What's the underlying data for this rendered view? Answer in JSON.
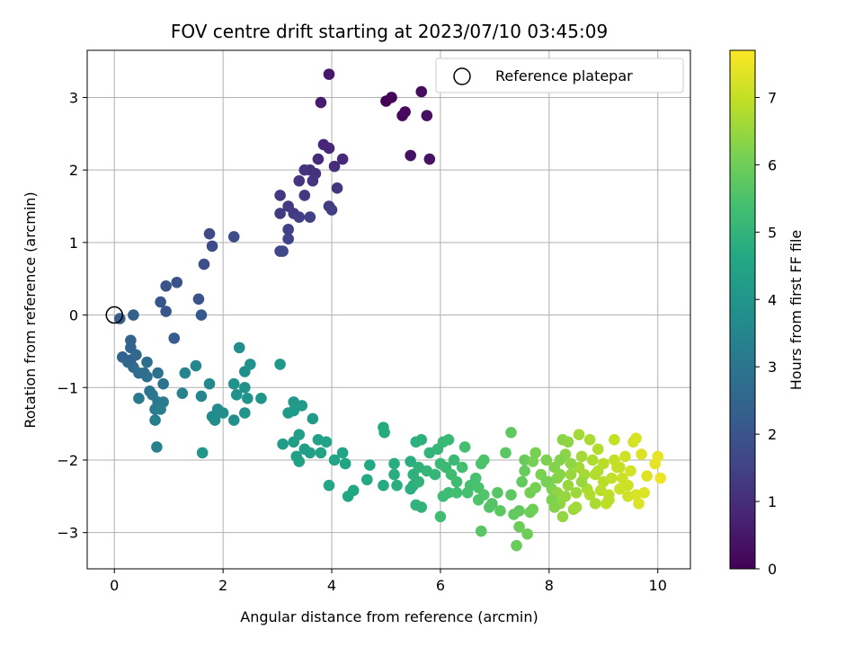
{
  "chart_data": {
    "type": "scatter",
    "title": "FOV centre drift starting at 2023/07/10 03:45:09",
    "xlabel": "Angular distance from reference (arcmin)",
    "ylabel": "Rotation from reference (arcmin)",
    "xlim": [
      -0.5,
      10.6
    ],
    "ylim": [
      -3.5,
      3.65
    ],
    "xticks": [
      "0",
      "2",
      "4",
      "6",
      "8",
      "10"
    ],
    "yticks": [
      "−3",
      "−2",
      "−1",
      "0",
      "1",
      "2",
      "3"
    ],
    "grid": true,
    "legend": {
      "position": "top-right",
      "entries": [
        "Reference platepar"
      ]
    },
    "reference_point": {
      "x": 0.0,
      "y": 0.0
    },
    "colorbar": {
      "label": "Hours from first FF file",
      "colormap": "viridis",
      "range": [
        0,
        7.7
      ],
      "ticks": [
        "0",
        "1",
        "2",
        "3",
        "4",
        "5",
        "6",
        "7"
      ]
    },
    "points": [
      [
        5.0,
        2.95,
        0.05
      ],
      [
        5.1,
        3.0,
        0.1
      ],
      [
        5.3,
        2.75,
        0.15
      ],
      [
        5.35,
        2.8,
        0.2
      ],
      [
        5.65,
        3.08,
        0.25
      ],
      [
        5.75,
        2.75,
        0.3
      ],
      [
        5.45,
        2.2,
        0.35
      ],
      [
        5.8,
        2.15,
        0.4
      ],
      [
        3.95,
        3.32,
        0.5
      ],
      [
        3.8,
        2.93,
        0.6
      ],
      [
        3.85,
        2.35,
        0.8
      ],
      [
        3.95,
        2.3,
        0.85
      ],
      [
        4.2,
        2.15,
        0.9
      ],
      [
        3.75,
        2.15,
        0.95
      ],
      [
        4.05,
        2.05,
        1.0
      ],
      [
        3.6,
        2.0,
        1.05
      ],
      [
        3.7,
        1.95,
        1.1
      ],
      [
        3.5,
        2.0,
        1.12
      ],
      [
        3.4,
        1.85,
        1.15
      ],
      [
        3.65,
        1.85,
        1.18
      ],
      [
        4.1,
        1.75,
        1.2
      ],
      [
        3.05,
        1.65,
        1.25
      ],
      [
        3.5,
        1.65,
        1.28
      ],
      [
        3.2,
        1.5,
        1.3
      ],
      [
        3.3,
        1.4,
        1.32
      ],
      [
        3.05,
        1.4,
        1.35
      ],
      [
        3.95,
        1.5,
        1.38
      ],
      [
        4.0,
        1.45,
        1.4
      ],
      [
        3.4,
        1.35,
        1.42
      ],
      [
        3.6,
        1.35,
        1.45
      ],
      [
        3.2,
        1.18,
        1.5
      ],
      [
        3.2,
        1.05,
        1.55
      ],
      [
        3.05,
        0.88,
        1.6
      ],
      [
        3.1,
        0.88,
        1.65
      ],
      [
        1.75,
        1.12,
        1.7
      ],
      [
        1.8,
        0.95,
        1.75
      ],
      [
        2.2,
        1.08,
        1.8
      ],
      [
        1.65,
        0.7,
        1.85
      ],
      [
        1.15,
        0.45,
        1.9
      ],
      [
        0.95,
        0.4,
        1.95
      ],
      [
        1.55,
        0.22,
        2.0
      ],
      [
        0.85,
        0.18,
        2.05
      ],
      [
        0.95,
        0.05,
        2.1
      ],
      [
        1.6,
        0.0,
        2.15
      ],
      [
        1.1,
        -0.32,
        2.2
      ],
      [
        0.1,
        -0.05,
        2.3
      ],
      [
        0.35,
        0.0,
        2.35
      ],
      [
        0.3,
        -0.35,
        2.4
      ],
      [
        0.3,
        -0.45,
        2.45
      ],
      [
        0.15,
        -0.58,
        2.5
      ],
      [
        0.25,
        -0.65,
        2.55
      ],
      [
        0.4,
        -0.55,
        2.6
      ],
      [
        0.35,
        -0.72,
        2.65
      ],
      [
        0.45,
        -0.8,
        2.7
      ],
      [
        0.6,
        -0.65,
        2.75
      ],
      [
        0.55,
        -0.8,
        2.8
      ],
      [
        0.8,
        -0.8,
        2.85
      ],
      [
        0.9,
        -0.95,
        2.9
      ],
      [
        0.65,
        -1.05,
        2.95
      ],
      [
        0.7,
        -1.1,
        3.0
      ],
      [
        0.8,
        -1.2,
        3.05
      ],
      [
        0.45,
        -1.15,
        3.1
      ],
      [
        0.75,
        -1.3,
        3.15
      ],
      [
        0.9,
        -1.2,
        3.2
      ],
      [
        0.85,
        -1.3,
        3.25
      ],
      [
        0.75,
        -1.45,
        3.3
      ],
      [
        0.78,
        -1.82,
        3.35
      ],
      [
        1.25,
        -1.08,
        3.4
      ],
      [
        1.3,
        -0.8,
        3.45
      ],
      [
        1.5,
        -0.7,
        3.5
      ],
      [
        1.6,
        -1.12,
        3.55
      ],
      [
        1.75,
        -0.95,
        3.6
      ],
      [
        1.8,
        -1.4,
        3.65
      ],
      [
        1.9,
        -1.3,
        3.7
      ],
      [
        1.85,
        -1.45,
        3.72
      ],
      [
        2.0,
        -1.35,
        3.75
      ],
      [
        2.2,
        -1.45,
        3.78
      ],
      [
        2.3,
        -0.45,
        3.8
      ],
      [
        2.4,
        -0.78,
        3.82
      ],
      [
        2.5,
        -0.68,
        3.85
      ],
      [
        2.2,
        -0.95,
        3.88
      ],
      [
        2.25,
        -1.1,
        3.9
      ],
      [
        2.4,
        -1.0,
        3.92
      ],
      [
        2.45,
        -1.15,
        3.95
      ],
      [
        2.4,
        -1.35,
        3.98
      ],
      [
        2.7,
        -1.15,
        4.0
      ],
      [
        1.62,
        -1.9,
        4.02
      ],
      [
        3.05,
        -0.68,
        4.05
      ],
      [
        3.3,
        -1.2,
        4.1
      ],
      [
        3.2,
        -1.35,
        4.12
      ],
      [
        3.45,
        -1.25,
        4.15
      ],
      [
        3.3,
        -1.32,
        4.18
      ],
      [
        3.65,
        -1.43,
        4.2
      ],
      [
        3.1,
        -1.78,
        4.22
      ],
      [
        3.3,
        -1.75,
        4.25
      ],
      [
        3.4,
        -1.65,
        4.28
      ],
      [
        3.5,
        -1.85,
        4.3
      ],
      [
        3.6,
        -1.9,
        4.32
      ],
      [
        3.35,
        -1.95,
        4.35
      ],
      [
        3.4,
        -2.02,
        4.38
      ],
      [
        3.75,
        -1.72,
        4.4
      ],
      [
        3.9,
        -1.75,
        4.42
      ],
      [
        3.8,
        -1.9,
        4.45
      ],
      [
        4.05,
        -2.0,
        4.48
      ],
      [
        4.2,
        -1.9,
        4.5
      ],
      [
        4.25,
        -2.05,
        4.52
      ],
      [
        3.95,
        -2.35,
        4.55
      ],
      [
        4.3,
        -2.5,
        4.58
      ],
      [
        4.4,
        -2.42,
        4.6
      ],
      [
        4.7,
        -2.07,
        4.62
      ],
      [
        4.65,
        -2.27,
        4.65
      ],
      [
        4.95,
        -1.55,
        4.7
      ],
      [
        4.97,
        -1.62,
        4.72
      ],
      [
        5.15,
        -2.05,
        4.75
      ],
      [
        5.15,
        -2.2,
        4.78
      ],
      [
        5.45,
        -2.02,
        4.8
      ],
      [
        5.5,
        -2.35,
        4.82
      ],
      [
        5.45,
        -2.4,
        4.85
      ],
      [
        5.55,
        -1.75,
        4.88
      ],
      [
        5.65,
        -1.72,
        4.9
      ],
      [
        5.5,
        -2.2,
        4.92
      ],
      [
        5.6,
        -2.3,
        4.95
      ],
      [
        5.55,
        -2.62,
        4.98
      ],
      [
        5.65,
        -2.65,
        5.0
      ],
      [
        5.8,
        -1.9,
        5.02
      ],
      [
        5.75,
        -2.15,
        5.05
      ],
      [
        5.9,
        -2.2,
        5.08
      ],
      [
        5.95,
        -1.85,
        5.1
      ],
      [
        6.05,
        -1.75,
        5.12
      ],
      [
        6.15,
        -1.72,
        5.15
      ],
      [
        6.0,
        -2.05,
        5.18
      ],
      [
        6.1,
        -2.1,
        5.2
      ],
      [
        6.25,
        -2.0,
        5.22
      ],
      [
        6.05,
        -2.5,
        5.25
      ],
      [
        6.15,
        -2.45,
        5.28
      ],
      [
        6.3,
        -2.3,
        5.3
      ],
      [
        6.0,
        -2.78,
        5.32
      ],
      [
        6.3,
        -2.45,
        5.35
      ],
      [
        6.45,
        -1.82,
        5.38
      ],
      [
        6.5,
        -2.45,
        5.4
      ],
      [
        6.55,
        -2.35,
        5.42
      ],
      [
        6.65,
        -2.25,
        5.45
      ],
      [
        6.7,
        -2.38,
        5.48
      ],
      [
        6.75,
        -2.05,
        5.5
      ],
      [
        6.8,
        -2.0,
        5.52
      ],
      [
        6.7,
        -2.55,
        5.55
      ],
      [
        6.8,
        -2.48,
        5.58
      ],
      [
        6.9,
        -2.65,
        5.6
      ],
      [
        6.95,
        -2.6,
        5.62
      ],
      [
        7.05,
        -2.45,
        5.65
      ],
      [
        6.75,
        -2.98,
        5.68
      ],
      [
        7.2,
        -1.9,
        5.7
      ],
      [
        7.1,
        -2.7,
        5.72
      ],
      [
        7.3,
        -2.48,
        5.75
      ],
      [
        7.3,
        -1.62,
        5.78
      ],
      [
        7.35,
        -2.75,
        5.8
      ],
      [
        7.45,
        -2.7,
        5.82
      ],
      [
        7.5,
        -2.3,
        5.85
      ],
      [
        7.55,
        -2.15,
        5.88
      ],
      [
        7.55,
        -2.0,
        5.9
      ],
      [
        7.4,
        -3.18,
        5.92
      ],
      [
        7.45,
        -2.92,
        5.95
      ],
      [
        7.6,
        -3.02,
        5.98
      ],
      [
        7.65,
        -2.72,
        6.0
      ],
      [
        7.7,
        -2.68,
        6.02
      ],
      [
        7.65,
        -2.45,
        6.05
      ],
      [
        7.75,
        -2.38,
        6.08
      ],
      [
        7.7,
        -2.02,
        6.1
      ],
      [
        7.75,
        -1.9,
        6.12
      ],
      [
        7.85,
        -2.2,
        6.15
      ],
      [
        7.95,
        -2.0,
        6.18
      ],
      [
        8.0,
        -2.3,
        6.2
      ],
      [
        8.05,
        -2.4,
        6.22
      ],
      [
        8.1,
        -2.1,
        6.25
      ],
      [
        8.15,
        -2.25,
        6.28
      ],
      [
        8.2,
        -2.2,
        6.3
      ],
      [
        8.25,
        -1.72,
        6.32
      ],
      [
        8.3,
        -1.92,
        6.35
      ],
      [
        8.35,
        -1.75,
        6.38
      ],
      [
        8.15,
        -2.45,
        6.4
      ],
      [
        8.2,
        -2.6,
        6.42
      ],
      [
        8.25,
        -2.78,
        6.45
      ],
      [
        8.3,
        -2.5,
        6.48
      ],
      [
        8.35,
        -2.35,
        6.5
      ],
      [
        8.4,
        -2.2,
        6.52
      ],
      [
        8.45,
        -2.68,
        6.55
      ],
      [
        8.5,
        -2.65,
        6.58
      ],
      [
        8.55,
        -1.65,
        6.6
      ],
      [
        8.55,
        -2.1,
        6.62
      ],
      [
        8.6,
        -1.95,
        6.65
      ],
      [
        8.65,
        -2.2,
        6.68
      ],
      [
        8.7,
        -2.4,
        6.7
      ],
      [
        8.75,
        -1.72,
        6.72
      ],
      [
        8.8,
        -2.0,
        6.75
      ],
      [
        8.75,
        -2.48,
        6.78
      ],
      [
        8.85,
        -2.2,
        6.8
      ],
      [
        8.9,
        -1.85,
        6.82
      ],
      [
        8.95,
        -2.42,
        6.85
      ],
      [
        9.0,
        -2.3,
        6.88
      ],
      [
        9.0,
        -2.05,
        6.9
      ],
      [
        9.05,
        -2.6,
        6.92
      ],
      [
        9.1,
        -2.48,
        6.95
      ],
      [
        9.15,
        -2.25,
        6.98
      ],
      [
        9.2,
        -1.72,
        7.0
      ],
      [
        9.2,
        -2.0,
        7.02
      ],
      [
        9.25,
        -2.1,
        7.05
      ],
      [
        9.3,
        -2.4,
        7.08
      ],
      [
        9.35,
        -2.25,
        7.1
      ],
      [
        9.4,
        -1.95,
        7.12
      ],
      [
        9.45,
        -2.5,
        7.15
      ],
      [
        9.5,
        -2.15,
        7.18
      ],
      [
        9.55,
        -1.75,
        7.2
      ],
      [
        9.6,
        -1.7,
        7.22
      ],
      [
        9.6,
        -2.48,
        7.25
      ],
      [
        9.65,
        -2.6,
        7.28
      ],
      [
        9.7,
        -1.92,
        7.3
      ],
      [
        9.75,
        -2.45,
        7.32
      ],
      [
        9.8,
        -2.22,
        7.35
      ],
      [
        9.95,
        -2.05,
        7.4
      ],
      [
        10.0,
        -1.95,
        7.45
      ],
      [
        10.05,
        -2.25,
        7.5
      ],
      [
        8.05,
        -2.55,
        6.2
      ],
      [
        8.1,
        -2.65,
        6.25
      ],
      [
        8.4,
        -2.05,
        6.4
      ],
      [
        8.6,
        -2.3,
        6.5
      ],
      [
        8.85,
        -2.6,
        6.7
      ],
      [
        9.1,
        -2.55,
        6.9
      ],
      [
        9.3,
        -2.1,
        7.0
      ],
      [
        8.2,
        -2.0,
        6.25
      ],
      [
        8.5,
        -2.45,
        6.55
      ],
      [
        7.95,
        -2.3,
        6.1
      ],
      [
        8.9,
        -2.15,
        6.8
      ],
      [
        9.45,
        -2.35,
        7.1
      ],
      [
        6.4,
        -2.1,
        5.35
      ],
      [
        5.2,
        -2.35,
        4.85
      ],
      [
        5.6,
        -2.1,
        4.95
      ],
      [
        4.95,
        -2.35,
        4.7
      ],
      [
        6.2,
        -2.2,
        5.3
      ],
      [
        0.3,
        -0.62,
        2.5
      ],
      [
        0.6,
        -0.85,
        2.8
      ]
    ]
  }
}
